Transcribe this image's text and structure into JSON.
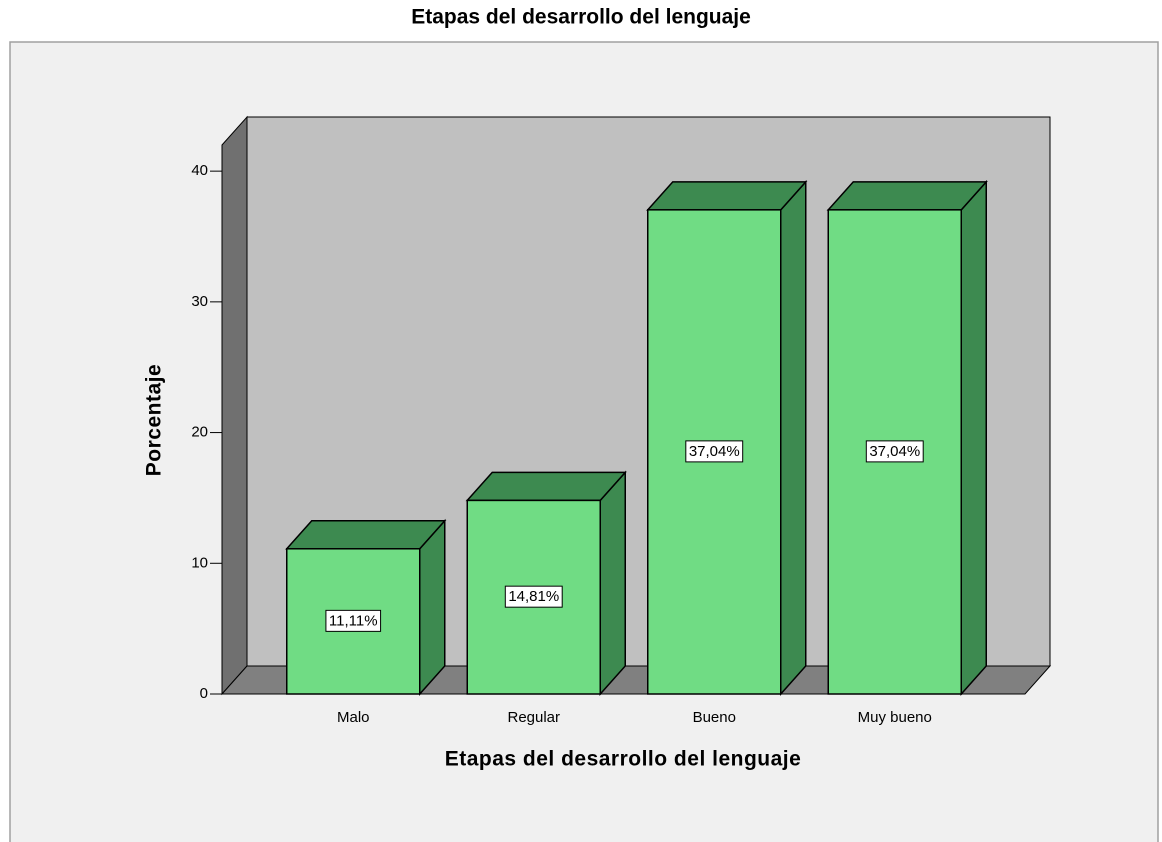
{
  "chart_data": {
    "type": "bar3d",
    "title": "Etapas del desarrollo del lenguaje",
    "x_label": "Etapas del desarrollo del lenguaje",
    "y_label": "Porcentaje",
    "categories": [
      "Malo",
      "Regular",
      "Bueno",
      "Muy bueno"
    ],
    "values": [
      11.11,
      14.81,
      37.04,
      37.04
    ],
    "value_labels": [
      "11,11%",
      "14,81%",
      "37,04%",
      "37,04%"
    ],
    "color": "#70dc84",
    "side_color": "#3d8a50",
    "ylim": [
      0,
      42
    ],
    "yticks": [
      0,
      10,
      20,
      30,
      40
    ]
  }
}
